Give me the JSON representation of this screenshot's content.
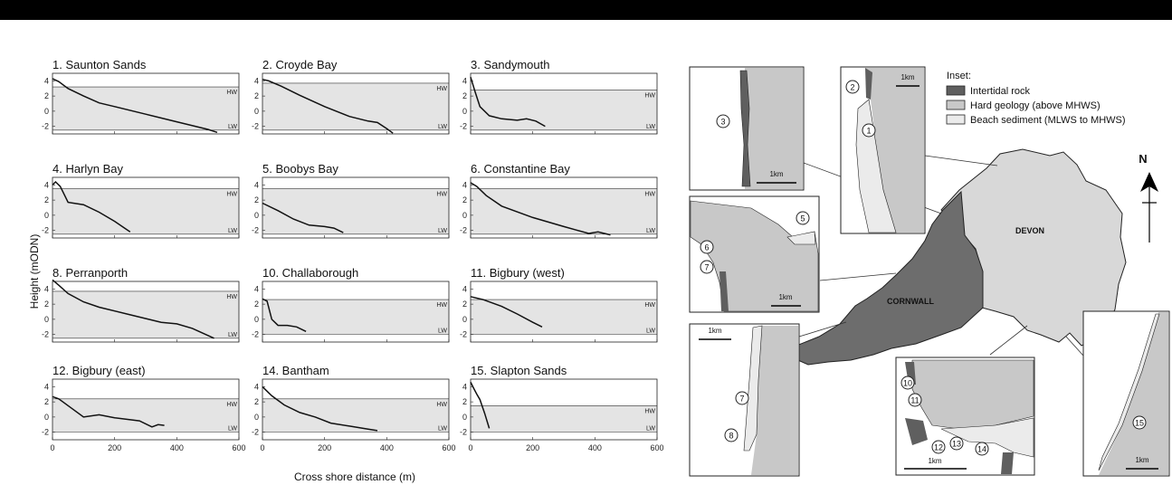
{
  "chart_data": {
    "type": "line",
    "ylabel": "Height (mODN)",
    "xlabel": "Cross shore distance (m)",
    "xlim": [
      0,
      600
    ],
    "ylim": [
      -3,
      5
    ],
    "x_ticks": [
      "0",
      "200",
      "400",
      "600"
    ],
    "y_ticks": [
      "4",
      "2",
      "0",
      "-2"
    ],
    "band_labels": {
      "hw": "HW",
      "lw": "LW"
    },
    "panels": [
      {
        "title": "1. Saunton Sands",
        "hw": 3.2,
        "lw": -2.5,
        "x": [
          0,
          20,
          50,
          100,
          150,
          200,
          300,
          400,
          500,
          530
        ],
        "y": [
          4.3,
          3.9,
          3.0,
          2.0,
          1.1,
          0.6,
          -0.4,
          -1.4,
          -2.4,
          -2.8
        ]
      },
      {
        "title": "2. Croyde Bay",
        "hw": 3.7,
        "lw": -2.5,
        "x": [
          0,
          20,
          60,
          120,
          200,
          280,
          340,
          370,
          400,
          420
        ],
        "y": [
          4.2,
          4.0,
          3.3,
          2.1,
          0.6,
          -0.7,
          -1.3,
          -1.5,
          -2.3,
          -2.9
        ]
      },
      {
        "title": "3. Sandymouth",
        "hw": 2.8,
        "lw": -2.5,
        "x": [
          0,
          15,
          30,
          60,
          100,
          150,
          180,
          210,
          240
        ],
        "y": [
          4.5,
          2.5,
          0.6,
          -0.6,
          -1.0,
          -1.2,
          -1.0,
          -1.3,
          -2.0
        ]
      },
      {
        "title": "4. Harlyn Bay",
        "hw": 3.5,
        "lw": -2.5,
        "x": [
          0,
          10,
          25,
          50,
          100,
          150,
          200,
          250
        ],
        "y": [
          4.0,
          4.4,
          3.8,
          1.7,
          1.4,
          0.4,
          -0.8,
          -2.2
        ]
      },
      {
        "title": "5. Boobys Bay",
        "hw": 3.5,
        "lw": -2.5,
        "x": [
          0,
          50,
          100,
          150,
          200,
          230,
          260
        ],
        "y": [
          1.6,
          0.6,
          -0.5,
          -1.3,
          -1.5,
          -1.7,
          -2.3
        ]
      },
      {
        "title": "6. Constantine Bay",
        "hw": 3.5,
        "lw": -2.5,
        "x": [
          0,
          20,
          50,
          100,
          200,
          300,
          380,
          410,
          450
        ],
        "y": [
          4.3,
          3.8,
          2.6,
          1.2,
          -0.3,
          -1.5,
          -2.4,
          -2.2,
          -2.6
        ]
      },
      {
        "title": "8. Perranporth",
        "hw": 3.7,
        "lw": -2.5,
        "x": [
          0,
          20,
          50,
          100,
          150,
          250,
          350,
          400,
          450,
          520
        ],
        "y": [
          5.2,
          4.5,
          3.4,
          2.3,
          1.6,
          0.6,
          -0.4,
          -0.6,
          -1.2,
          -2.5
        ]
      },
      {
        "title": "10. Challaborough",
        "hw": 2.6,
        "lw": -2.0,
        "x": [
          0,
          15,
          30,
          50,
          80,
          110,
          140
        ],
        "y": [
          2.7,
          2.4,
          0.0,
          -0.8,
          -0.8,
          -1.0,
          -1.6
        ]
      },
      {
        "title": "11. Bigbury (west)",
        "hw": 2.6,
        "lw": -2.0,
        "x": [
          0,
          40,
          100,
          150,
          200,
          230
        ],
        "y": [
          3.0,
          2.6,
          1.7,
          0.7,
          -0.4,
          -1.0
        ]
      },
      {
        "title": "12. Bigbury (east)",
        "hw": 2.4,
        "lw": -2.0,
        "x": [
          0,
          20,
          60,
          100,
          150,
          200,
          280,
          320,
          340,
          360
        ],
        "y": [
          2.7,
          2.4,
          1.2,
          0.0,
          0.3,
          -0.1,
          -0.5,
          -1.3,
          -1.0,
          -1.1
        ]
      },
      {
        "title": "14. Bantham",
        "hw": 2.4,
        "lw": -2.0,
        "x": [
          0,
          30,
          70,
          120,
          170,
          220,
          280,
          340,
          370
        ],
        "y": [
          4.0,
          2.8,
          1.6,
          0.6,
          0.0,
          -0.8,
          -1.2,
          -1.6,
          -1.8
        ]
      },
      {
        "title": "15. Slapton Sands",
        "hw": 1.5,
        "lw": -2.0,
        "x": [
          0,
          10,
          20,
          30,
          45,
          60
        ],
        "y": [
          4.6,
          3.8,
          3.0,
          2.3,
          0.5,
          -1.5
        ]
      }
    ]
  },
  "map": {
    "county_labels": [
      "DEVON",
      "CORNWALL"
    ],
    "legend": {
      "title": "Inset:",
      "items": [
        {
          "label": "Intertidal rock",
          "color": "#5f5f5f"
        },
        {
          "label": "Hard geology (above MHWS)",
          "color": "#c8c8c8"
        },
        {
          "label": "Beach sediment (MLWS to MHWS)",
          "color": "#ebebeb"
        }
      ]
    },
    "north_label": "N",
    "scale_label": "1km",
    "inset_numbers": [
      "1",
      "2",
      "3",
      "4",
      "5",
      "6",
      "7",
      "8",
      "10",
      "11",
      "12",
      "13",
      "14",
      "15"
    ]
  }
}
